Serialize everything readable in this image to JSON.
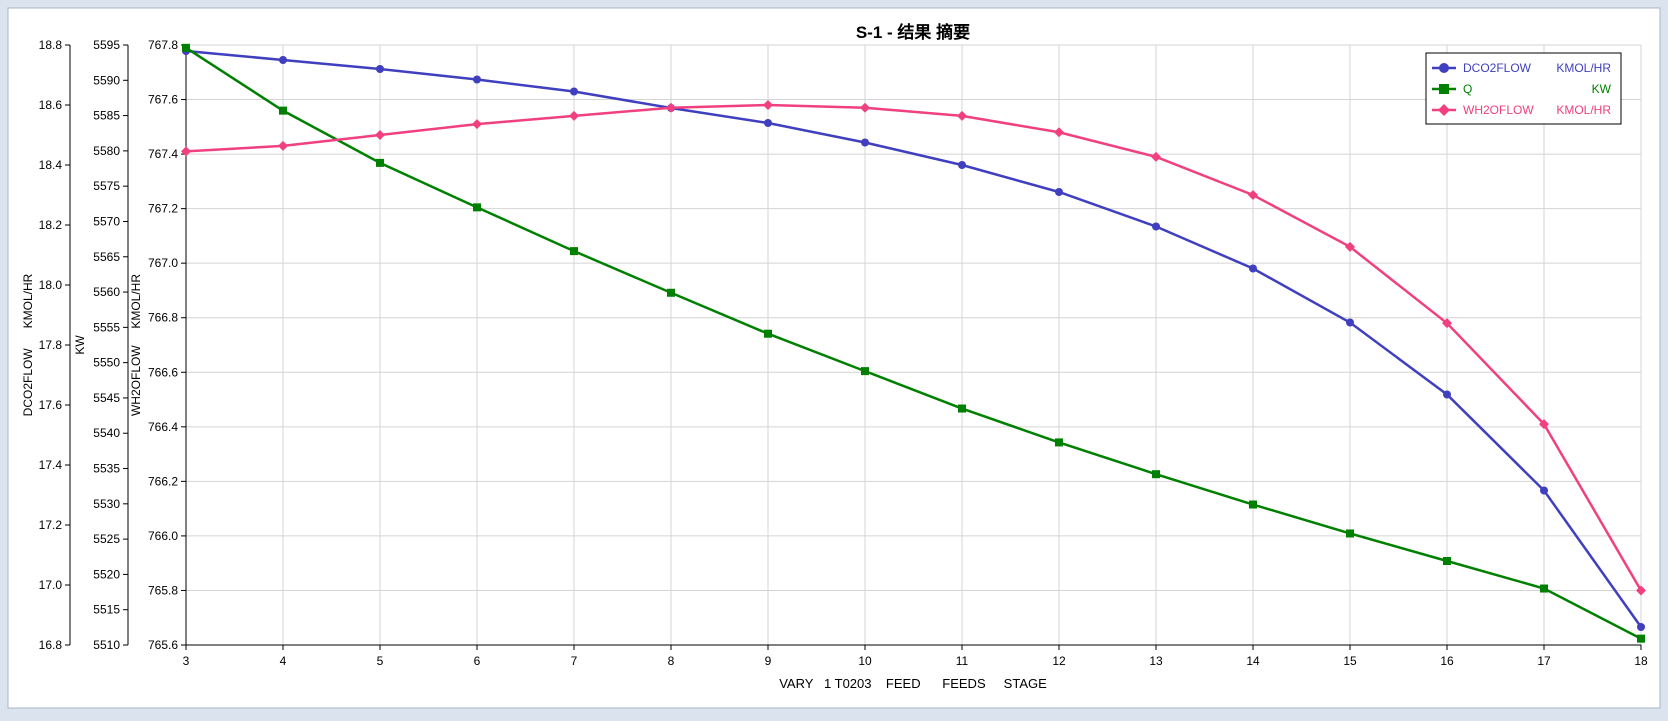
{
  "window": {
    "bg": "#dbe3ee",
    "panel_bg": "#ffffff"
  },
  "chart_data": {
    "type": "line",
    "title": "S-1 - 结果 摘要",
    "xlabel": "VARY   1 T0203    FEED      FEEDS     STAGE",
    "x": [
      3,
      4,
      5,
      6,
      7,
      8,
      9,
      10,
      11,
      12,
      13,
      14,
      15,
      16,
      17,
      18
    ],
    "xlim": [
      3,
      18
    ],
    "grid": true,
    "legend_position": "top-right",
    "axes": [
      {
        "id": "dco2",
        "label": "DCO2FLOW      KMOL/HR",
        "ylim": [
          16.8,
          18.8
        ],
        "ticks": [
          "16.8",
          "17.0",
          "17.2",
          "17.4",
          "17.6",
          "17.8",
          "18.0",
          "18.2",
          "18.4",
          "18.6",
          "18.8"
        ]
      },
      {
        "id": "q",
        "label": "KW",
        "ylim": [
          5510,
          5595
        ],
        "ticks": [
          "5510",
          "5515",
          "5520",
          "5525",
          "5530",
          "5535",
          "5540",
          "5545",
          "5550",
          "5555",
          "5560",
          "5565",
          "5570",
          "5575",
          "5580",
          "5585",
          "5590",
          "5595"
        ]
      },
      {
        "id": "wh2o",
        "label": "WH2OFLOW     KMOL/HR",
        "ylim": [
          765.6,
          767.8
        ],
        "ticks": [
          "765.6",
          "765.8",
          "766.0",
          "766.2",
          "766.4",
          "766.6",
          "766.8",
          "767.0",
          "767.2",
          "767.4",
          "767.6",
          "767.8"
        ]
      }
    ],
    "series": [
      {
        "name": "DCO2FLOW",
        "unit": "KMOL/HR",
        "axis": "dco2",
        "color": "#3f3fbf",
        "marker": "circle",
        "values": [
          18.78,
          18.75,
          18.72,
          18.685,
          18.645,
          18.59,
          18.54,
          18.475,
          18.4,
          18.31,
          18.195,
          18.055,
          17.875,
          17.635,
          17.315,
          16.86
        ]
      },
      {
        "name": "Q",
        "unit": "KW",
        "axis": "q",
        "color": "#008000",
        "marker": "square",
        "values": [
          5594.6,
          5585.7,
          5578.3,
          5572.0,
          5565.8,
          5559.9,
          5554.1,
          5548.8,
          5543.5,
          5538.7,
          5534.2,
          5529.9,
          5525.8,
          5521.9,
          5518.0,
          5510.9
        ]
      },
      {
        "name": "WH2OFLOW",
        "unit": "KMOL/HR",
        "axis": "wh2o",
        "color": "#f0407f",
        "marker": "diamond",
        "values": [
          767.41,
          767.43,
          767.47,
          767.51,
          767.54,
          767.57,
          767.58,
          767.57,
          767.54,
          767.48,
          767.39,
          767.25,
          767.06,
          766.78,
          766.41,
          765.8
        ]
      }
    ]
  }
}
